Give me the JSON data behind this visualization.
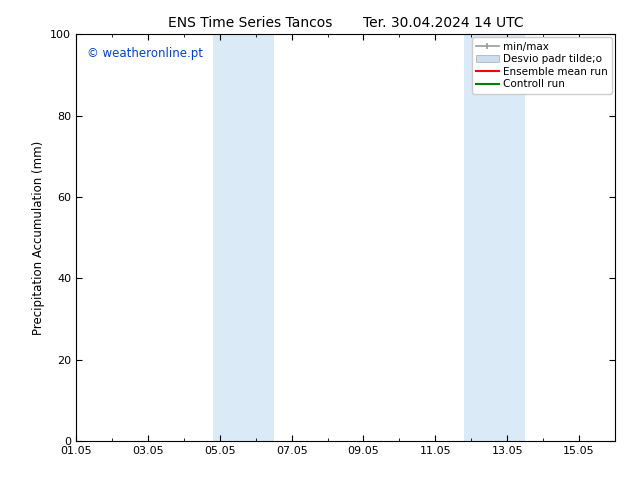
{
  "title": "ENS Time Series Tancos       Ter. 30.04.2024 14 UTC",
  "ylabel": "Precipitation Accumulation (mm)",
  "ylim": [
    0,
    100
  ],
  "yticks": [
    0,
    20,
    40,
    60,
    80,
    100
  ],
  "xtick_labels": [
    "01.05",
    "03.05",
    "05.05",
    "07.05",
    "09.05",
    "11.05",
    "13.05",
    "15.05"
  ],
  "xtick_positions": [
    0,
    2,
    4,
    6,
    8,
    10,
    12,
    14
  ],
  "xlim": [
    0,
    15
  ],
  "bg_color": "#ffffff",
  "plot_bg_color": "#ffffff",
  "shaded_bands": [
    {
      "x_start": 3.8,
      "x_end": 5.5,
      "color": "#daeaf7"
    },
    {
      "x_start": 10.8,
      "x_end": 12.5,
      "color": "#daeaf7"
    }
  ],
  "legend_entries": [
    {
      "label": "min/max",
      "color": "#999999",
      "style": "minmax"
    },
    {
      "label": "Desvio padr tilde;o",
      "color": "#ccddee",
      "style": "filled"
    },
    {
      "label": "Ensemble mean run",
      "color": "#ff0000",
      "style": "line"
    },
    {
      "label": "Controll run",
      "color": "#008000",
      "style": "line"
    }
  ],
  "watermark_text": "© weatheronline.pt",
  "watermark_color": "#0044cc",
  "title_fontsize": 10,
  "label_fontsize": 8.5,
  "tick_fontsize": 8,
  "legend_fontsize": 7.5
}
